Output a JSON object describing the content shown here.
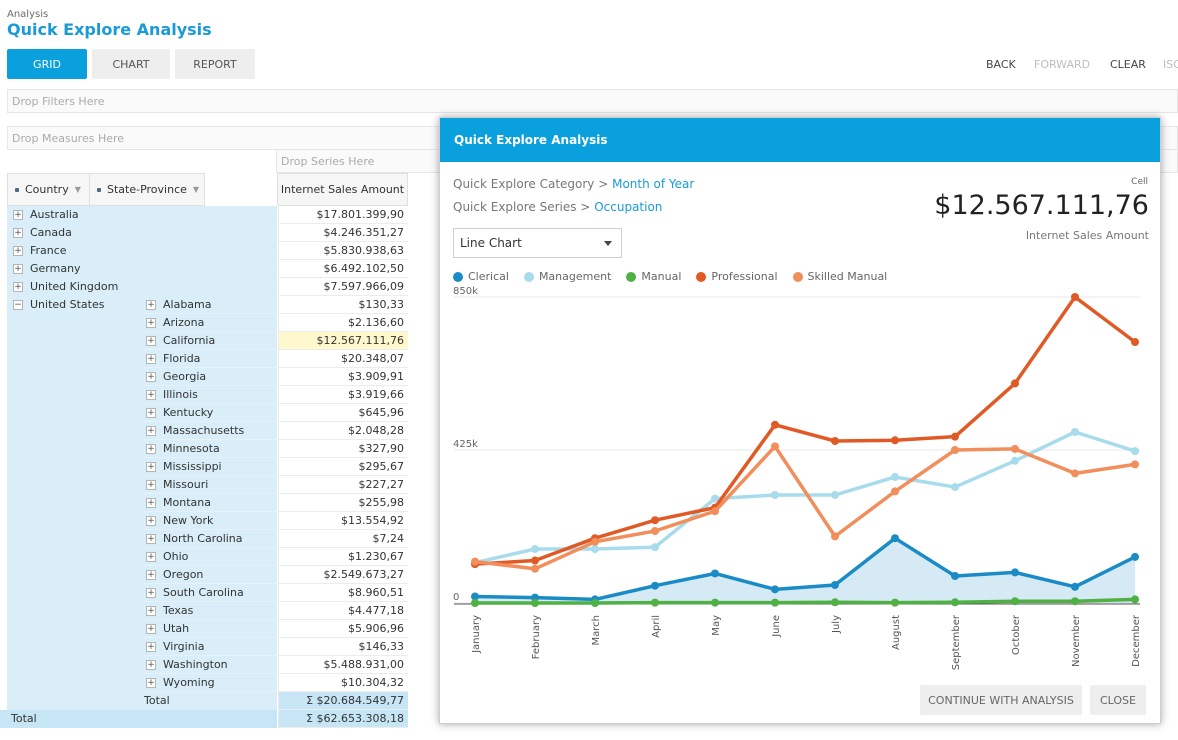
{
  "breadcrumb": "Analysis",
  "title": "Quick Explore Analysis",
  "tabs": [
    {
      "label": "GRID",
      "active": true
    },
    {
      "label": "CHART",
      "active": false
    },
    {
      "label": "REPORT",
      "active": false
    }
  ],
  "nav": {
    "back": "BACK",
    "forward": "FORWARD",
    "clear": "CLEAR",
    "iso": "ISO"
  },
  "dropzones": {
    "filters": "Drop Filters Here",
    "measures": "Drop Measures Here",
    "series": "Drop Series Here"
  },
  "grid": {
    "col_country": "Country",
    "col_state": "State-Province",
    "col_measure": "Internet Sales Amount",
    "countries": [
      {
        "name": "Australia",
        "value": "$17.801.399,90",
        "expanded": false
      },
      {
        "name": "Canada",
        "value": "$4.246.351,27",
        "expanded": false
      },
      {
        "name": "France",
        "value": "$5.830.938,63",
        "expanded": false
      },
      {
        "name": "Germany",
        "value": "$6.492.102,50",
        "expanded": false
      },
      {
        "name": "United Kingdom",
        "value": "$7.597.966,09",
        "expanded": false
      },
      {
        "name": "United States",
        "value": "",
        "expanded": true
      }
    ],
    "states": [
      {
        "name": "Alabama",
        "value": "$130,33"
      },
      {
        "name": "Arizona",
        "value": "$2.136,60"
      },
      {
        "name": "California",
        "value": "$12.567.111,76",
        "selected": true
      },
      {
        "name": "Florida",
        "value": "$20.348,07"
      },
      {
        "name": "Georgia",
        "value": "$3.909,91"
      },
      {
        "name": "Illinois",
        "value": "$3.919,66"
      },
      {
        "name": "Kentucky",
        "value": "$645,96"
      },
      {
        "name": "Massachusetts",
        "value": "$2.048,28"
      },
      {
        "name": "Minnesota",
        "value": "$327,90"
      },
      {
        "name": "Mississippi",
        "value": "$295,67"
      },
      {
        "name": "Missouri",
        "value": "$227,27"
      },
      {
        "name": "Montana",
        "value": "$255,98"
      },
      {
        "name": "New York",
        "value": "$13.554,92"
      },
      {
        "name": "North Carolina",
        "value": "$7,24"
      },
      {
        "name": "Ohio",
        "value": "$1.230,67"
      },
      {
        "name": "Oregon",
        "value": "$2.549.673,27"
      },
      {
        "name": "South Carolina",
        "value": "$8.960,51"
      },
      {
        "name": "Texas",
        "value": "$4.477,18"
      },
      {
        "name": "Utah",
        "value": "$5.906,96"
      },
      {
        "name": "Virginia",
        "value": "$146,33"
      },
      {
        "name": "Washington",
        "value": "$5.488.931,00"
      },
      {
        "name": "Wyoming",
        "value": "$10.304,32"
      }
    ],
    "us_total_label": "Total",
    "us_total_value": "Σ $20.684.549,77",
    "grand_total_label": "Total",
    "grand_total_value": "Σ $62.653.308,18"
  },
  "modal": {
    "title": "Quick Explore Analysis",
    "category_prefix": "Quick Explore Category >",
    "category_value": "Month of Year",
    "series_prefix": "Quick Explore Series >",
    "series_value": "Occupation",
    "cell_label": "Cell",
    "big_value": "$12.567.111,76",
    "measure_label": "Internet Sales Amount",
    "chart_type_select": "Line Chart",
    "continue_button": "CONTINUE WITH ANALYSIS",
    "close_button": "CLOSE"
  },
  "chart_data": {
    "type": "line",
    "categories": [
      "January",
      "February",
      "March",
      "April",
      "May",
      "June",
      "July",
      "August",
      "September",
      "October",
      "November",
      "December"
    ],
    "y_ticks": [
      {
        "value": 850000,
        "label": "850k"
      },
      {
        "value": 425000,
        "label": "425k"
      },
      {
        "value": 0,
        "label": "0"
      }
    ],
    "ylim": [
      0,
      850000
    ],
    "grid": true,
    "legend_position": "top-left",
    "series": [
      {
        "name": "Clerical",
        "color": "#1a8bc5",
        "area": true,
        "values": [
          18000,
          15000,
          10000,
          48000,
          82000,
          38000,
          50000,
          180000,
          75000,
          85000,
          45000,
          128000
        ]
      },
      {
        "name": "Management",
        "color": "#a8dcec",
        "values": [
          112000,
          150000,
          150000,
          155000,
          290000,
          300000,
          300000,
          350000,
          322000,
          395000,
          475000,
          422000
        ]
      },
      {
        "name": "Manual",
        "color": "#4fb043",
        "values": [
          0,
          0,
          0,
          1000,
          1000,
          1000,
          2000,
          1000,
          2000,
          5000,
          5000,
          10000
        ]
      },
      {
        "name": "Professional",
        "color": "#e15a26",
        "values": [
          108000,
          118000,
          180000,
          230000,
          265000,
          495000,
          450000,
          452000,
          462000,
          610000,
          850000,
          725000
        ]
      },
      {
        "name": "Skilled Manual",
        "color": "#f28e5c",
        "values": [
          115000,
          95000,
          170000,
          200000,
          255000,
          435000,
          185000,
          310000,
          425000,
          428000,
          360000,
          385000
        ]
      }
    ]
  }
}
